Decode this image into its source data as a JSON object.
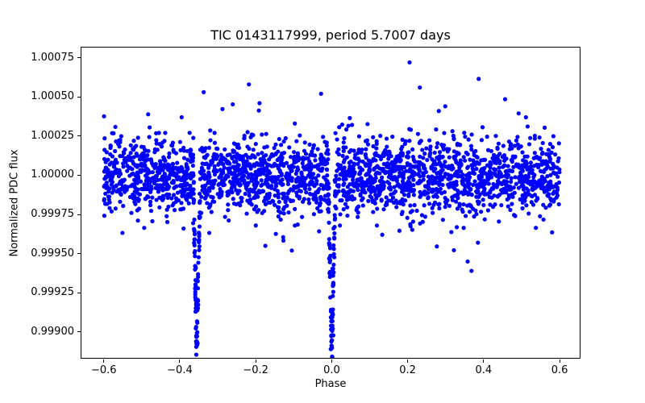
{
  "chart_data": {
    "type": "scatter",
    "title": "TIC 0143117999, period 5.7007 days",
    "xlabel": "Phase",
    "ylabel": "Normalized PDC flux",
    "xlim": [
      -0.661,
      0.655
    ],
    "ylim": [
      0.99883,
      1.00082
    ],
    "xticks": {
      "values": [
        -0.6,
        -0.4,
        -0.2,
        0.0,
        0.2,
        0.4,
        0.6
      ],
      "labels": [
        "−0.6",
        "−0.4",
        "−0.2",
        "0.0",
        "0.2",
        "0.4",
        "0.6"
      ]
    },
    "yticks": {
      "values": [
        0.999,
        0.99925,
        0.9995,
        0.99975,
        1.0,
        1.00025,
        1.0005,
        1.00075
      ],
      "labels": [
        "0.99900",
        "0.99925",
        "0.99950",
        "0.99975",
        "1.00000",
        "1.00025",
        "1.00050",
        "1.00075"
      ]
    },
    "grid": false,
    "legend": null,
    "marker": {
      "color": "#0000ff",
      "radius_px": 2.6
    },
    "series_model": {
      "seed": 7,
      "n_points": 2600,
      "phase_range": [
        -0.6,
        0.6
      ],
      "baseline_flux": 1.0,
      "noise_sigma": 0.000115,
      "outlier_fraction": 0.06,
      "outlier_sigma": 0.0002,
      "eclipses": [
        {
          "name": "primary-eclipse",
          "center_phase": 0.0,
          "half_width": 0.0095,
          "depth": 0.0011,
          "shape_exponent": 1.2,
          "extra_points": 45
        },
        {
          "name": "secondary-eclipse",
          "center_phase": -0.355,
          "half_width": 0.009,
          "depth": 0.00105,
          "shape_exponent": 1.2,
          "extra_points": 45
        }
      ]
    },
    "pinned_points": [
      [
        0.205,
        1.00072
      ],
      [
        0.232,
        1.00056
      ],
      [
        -0.218,
        1.00058
      ],
      [
        -0.337,
        1.00053
      ],
      [
        -0.19,
        1.00046
      ],
      [
        -0.028,
        1.00052
      ],
      [
        0.282,
        1.00041
      ],
      [
        0.299,
        1.00044
      ],
      [
        -0.105,
        0.99952
      ],
      [
        0.358,
        0.99945
      ],
      [
        0.368,
        0.99939
      ],
      [
        0.385,
        0.99957
      ],
      [
        -0.39,
        0.99966
      ],
      [
        0.0,
        0.99891
      ],
      [
        -0.355,
        0.99894
      ]
    ]
  },
  "axes_style": {
    "background": "#ffffff",
    "spine_color": "#000000",
    "tick_color": "#000000",
    "text_color": "#000000"
  }
}
